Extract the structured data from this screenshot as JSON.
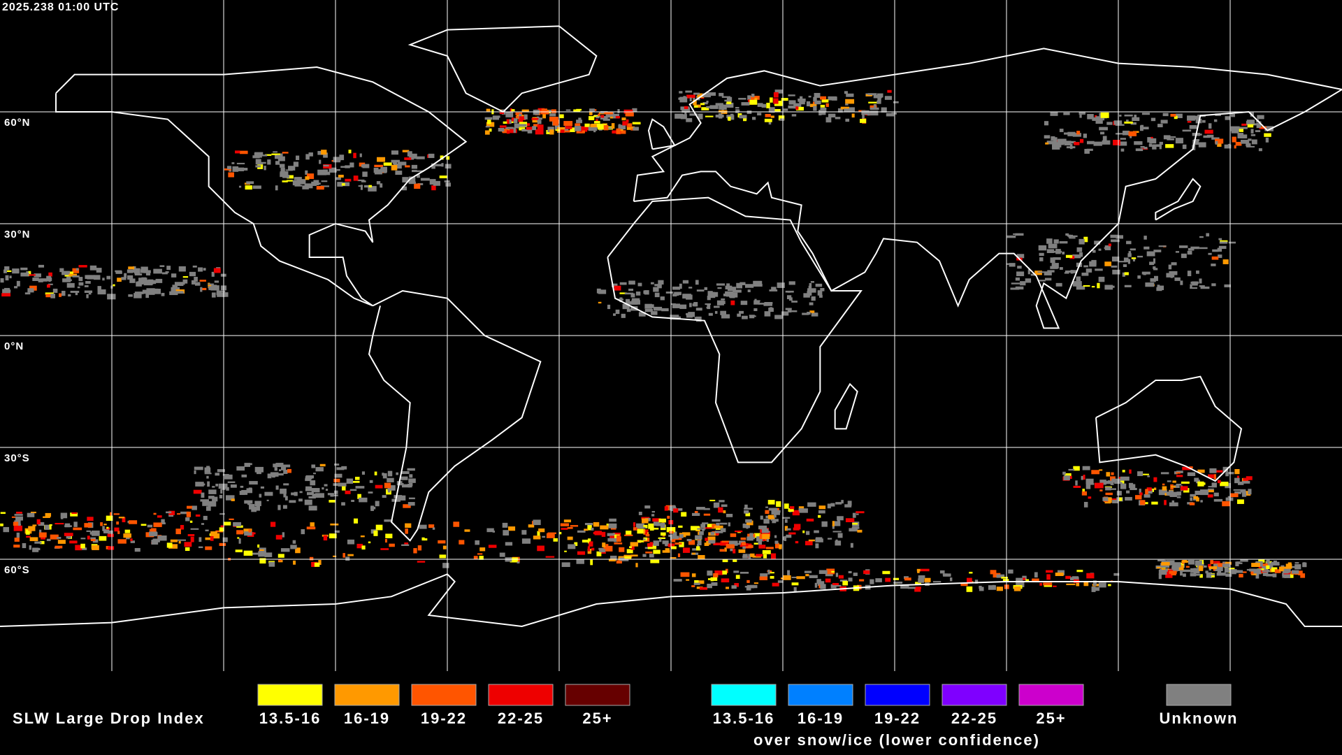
{
  "header": {
    "timestamp": "2025.238 01:00 UTC"
  },
  "map": {
    "latitude_labels": [
      "60°N",
      "30°N",
      "0°N",
      "30°S",
      "60°S"
    ]
  },
  "legend": {
    "title": "SLW Large Drop Index",
    "groups": [
      {
        "items": [
          {
            "label": "13.5-16",
            "color": "#ffff00"
          },
          {
            "label": "16-19",
            "color": "#ff9900"
          },
          {
            "label": "19-22",
            "color": "#ff5500"
          },
          {
            "label": "22-25",
            "color": "#ee0000"
          },
          {
            "label": "25+",
            "color": "#660000"
          }
        ]
      },
      {
        "items": [
          {
            "label": "13.5-16",
            "color": "#00ffff"
          },
          {
            "label": "16-19",
            "color": "#0080ff"
          },
          {
            "label": "19-22",
            "color": "#0000ff"
          },
          {
            "label": "22-25",
            "color": "#7f00ff"
          },
          {
            "label": "25+",
            "color": "#cc00cc"
          }
        ],
        "caption": "over snow/ice (lower confidence)"
      }
    ],
    "unknown": {
      "label": "Unknown",
      "color": "#808080"
    }
  }
}
